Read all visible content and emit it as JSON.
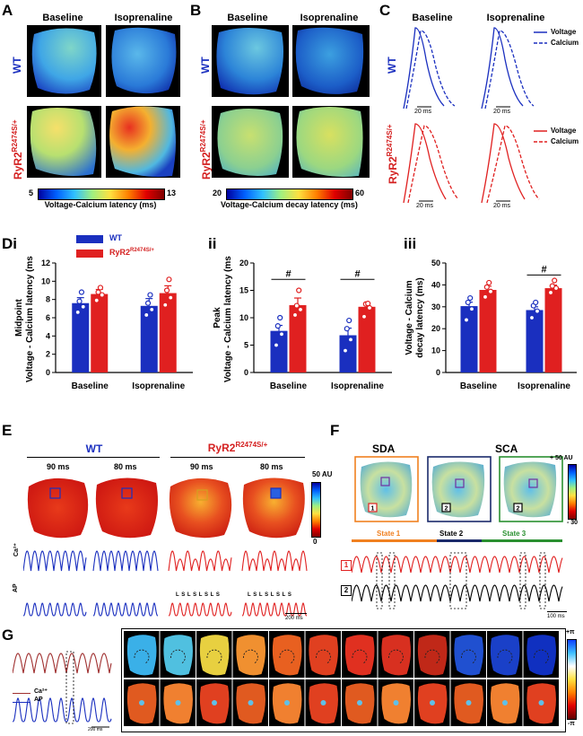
{
  "panels": {
    "A": {
      "label": "A",
      "col1": "Baseline",
      "col2": "Isoprenaline",
      "row1": "WT",
      "row2_main": "RyR2",
      "row2_sup": "R2474S/+",
      "cbar_min": "5",
      "cbar_max": "13",
      "cbar_label": "Voltage-Calcium latency (ms)"
    },
    "B": {
      "label": "B",
      "col1": "Baseline",
      "col2": "Isoprenaline",
      "row1": "WT",
      "row2_main": "RyR2",
      "row2_sup": "R2474S/+",
      "cbar_min": "20",
      "cbar_max": "60",
      "cbar_label": "Voltage-Calcium decay latency (ms)"
    },
    "C": {
      "label": "C",
      "col1": "Baseline",
      "col2": "Isoprenaline",
      "row1": "WT",
      "row2_main": "RyR2",
      "row2_sup": "R2474S/+",
      "legend_voltage": "Voltage",
      "legend_calcium": "Calcium",
      "scale": "20 ms"
    },
    "D": {
      "label": "Di",
      "label_ii": "ii",
      "label_iii": "iii",
      "legend_wt": "WT",
      "legend_rr_main": "RyR2",
      "legend_rr_sup": "R2474S/+",
      "xcats": [
        "Baseline",
        "Isoprenaline"
      ],
      "sig": "#"
    },
    "E": {
      "label": "E",
      "wt": "WT",
      "rr_main": "RyR2",
      "rr_sup": "R2474S/+",
      "t1": "90 ms",
      "t2": "80 ms",
      "t3": "90 ms",
      "t4": "80 ms",
      "ca": "Ca²⁺",
      "ap": "AP",
      "cbar_max": "50 AU",
      "cbar_min": "0",
      "scale": "200 ms",
      "ls": "L S L S L S L S"
    },
    "F": {
      "label": "F",
      "sda": "SDA",
      "sca": "SCA",
      "cbar_max": "+ 50 AU",
      "cbar_min": "- 30",
      "state1": "State 1",
      "state2": "State 2",
      "state3": "State 3",
      "box1": "1",
      "box2": "2",
      "scale": "100 ms"
    },
    "G": {
      "label": "G",
      "ca": "Ca²⁺",
      "ap": "AP",
      "scale": "200 ms",
      "cbar_max": "+π",
      "cbar_min": "-π"
    }
  },
  "chart_data": [
    {
      "type": "bar",
      "title": "Di",
      "categories": [
        "Baseline",
        "Isoprenaline"
      ],
      "ylabel": "Midpoint Voltage - Calcium latency (ms)",
      "ylim": [
        0,
        12
      ],
      "yticks": [
        0,
        2,
        4,
        6,
        8,
        10,
        12
      ],
      "series": [
        {
          "name": "WT",
          "values": [
            7.6,
            7.3
          ],
          "errors": [
            0.6,
            0.8
          ],
          "points": [
            [
              6.6,
              7.2,
              7.8,
              8.8
            ],
            [
              6.3,
              6.9,
              7.6,
              8.5
            ]
          ]
        },
        {
          "name": "RyR2 R2474S/+",
          "values": [
            8.6,
            8.7
          ],
          "errors": [
            0.5,
            0.8
          ],
          "points": [
            [
              7.9,
              8.5,
              8.8,
              9.3
            ],
            [
              7.4,
              8.2,
              9.0,
              10.2
            ]
          ]
        }
      ]
    },
    {
      "type": "bar",
      "title": "ii",
      "categories": [
        "Baseline",
        "Isoprenaline"
      ],
      "ylabel": "Peak Voltage - Calcium latency (ms)",
      "ylim": [
        0,
        20
      ],
      "yticks": [
        0,
        5,
        10,
        15,
        20
      ],
      "series": [
        {
          "name": "WT",
          "values": [
            7.6,
            6.8
          ],
          "errors": [
            1.0,
            1.3
          ],
          "points": [
            [
              5.0,
              7.0,
              8.5,
              10.0
            ],
            [
              4.0,
              6.0,
              8.0,
              9.5
            ]
          ]
        },
        {
          "name": "RyR2 R2474S/+",
          "values": [
            12.3,
            12.0
          ],
          "errors": [
            1.3,
            0.6
          ],
          "points": [
            [
              10.5,
              11.5,
              12.2,
              15.0
            ],
            [
              10.2,
              11.8,
              12.5,
              12.6
            ]
          ]
        }
      ],
      "annotations": [
        "#",
        "#"
      ]
    },
    {
      "type": "bar",
      "title": "iii",
      "categories": [
        "Baseline",
        "Isoprenaline"
      ],
      "ylabel": "Voltage - Calcium decay latency (ms)",
      "ylim": [
        0,
        50
      ],
      "yticks": [
        0,
        10,
        20,
        30,
        40,
        50
      ],
      "series": [
        {
          "name": "WT",
          "values": [
            30.3,
            28.5
          ],
          "errors": [
            1.8,
            1.5
          ],
          "points": [
            [
              24.0,
              29.0,
              32.0,
              34.0
            ],
            [
              25.0,
              28.0,
              30.5,
              32.0
            ]
          ]
        },
        {
          "name": "RyR2 R2474S/+",
          "values": [
            37.7,
            38.5
          ],
          "errors": [
            1.7,
            1.4
          ],
          "points": [
            [
              34.5,
              37.0,
              39.0,
              41.0
            ],
            [
              36.5,
              38.5,
              39.5,
              42.0
            ]
          ]
        }
      ],
      "annotations": [
        "#"
      ]
    }
  ],
  "colors": {
    "wt": "#1a2fbf",
    "rr": "#e02020"
  }
}
